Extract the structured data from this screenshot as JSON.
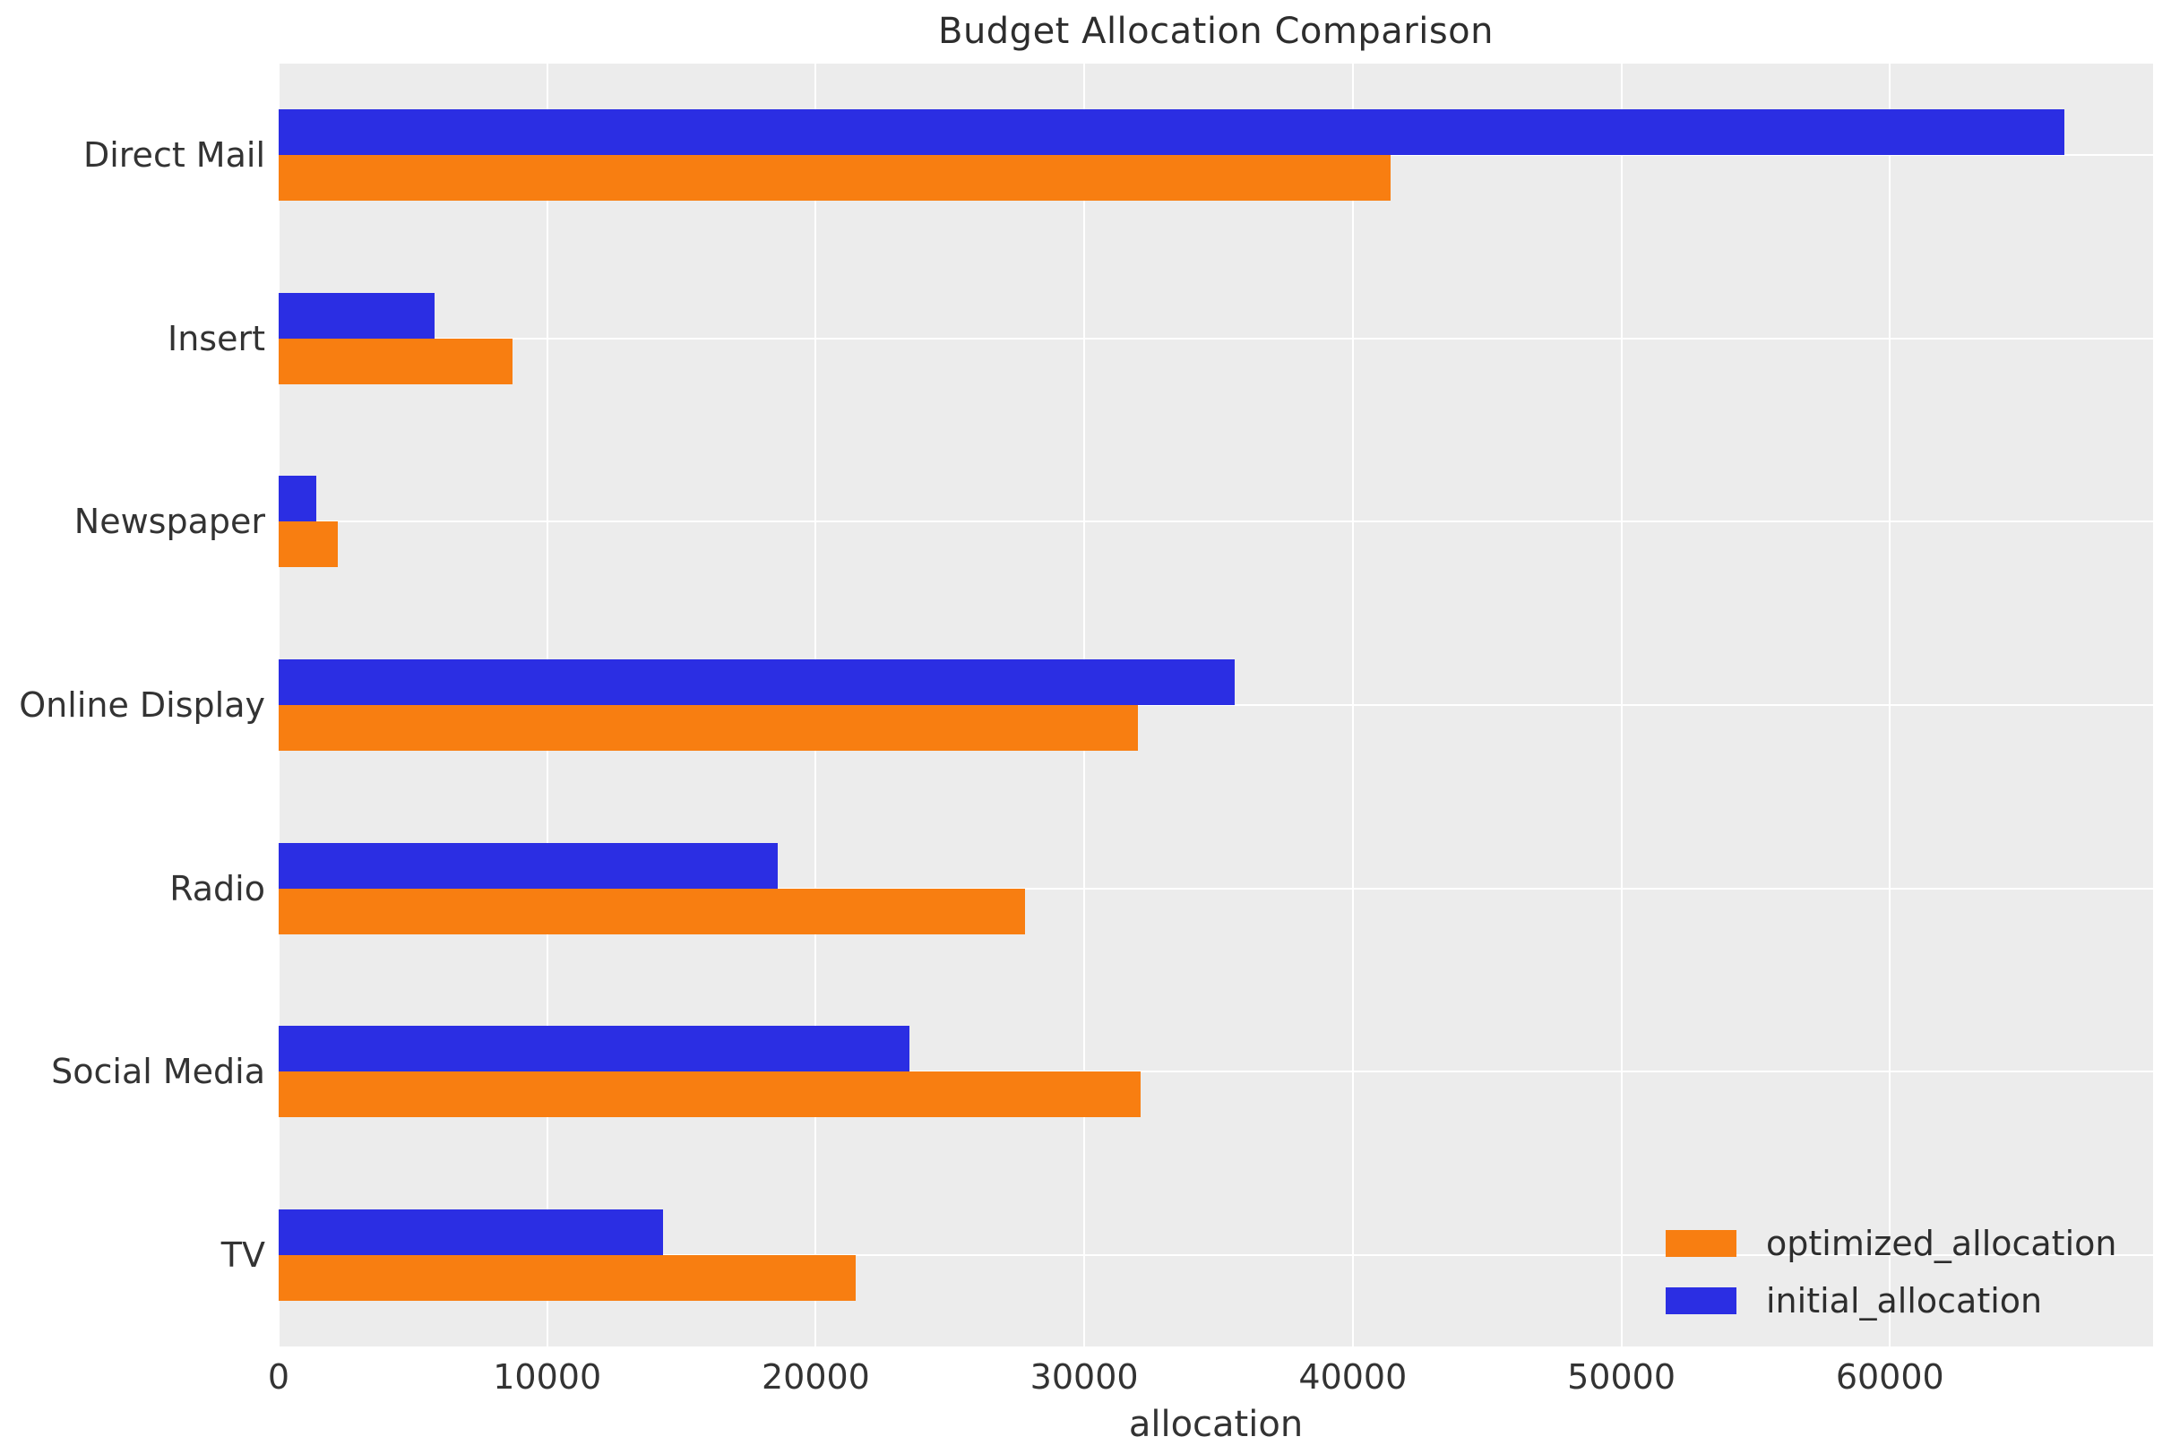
{
  "chart_data": {
    "type": "bar",
    "orientation": "horizontal",
    "title": "Budget Allocation Comparison",
    "xlabel": "allocation",
    "ylabel": "",
    "categories": [
      "Direct Mail",
      "Insert",
      "Newspaper",
      "Online Display",
      "Radio",
      "Social Media",
      "TV"
    ],
    "series": [
      {
        "name": "optimized_allocation",
        "color": "#f87e11",
        "values": [
          41400,
          8700,
          2200,
          32000,
          27800,
          32100,
          21500
        ]
      },
      {
        "name": "initial_allocation",
        "color": "#2b2ee3",
        "values": [
          66500,
          5800,
          1400,
          35600,
          18600,
          23500,
          14300
        ]
      }
    ],
    "bar_layout_note": "for each category the initial_allocation (blue) bar is drawn above the optimized_allocation (orange) bar",
    "x_ticks": [
      "0",
      "10000",
      "20000",
      "30000",
      "40000",
      "50000",
      "60000"
    ],
    "x_tick_values": [
      0,
      10000,
      20000,
      30000,
      40000,
      50000,
      60000
    ],
    "xlim": [
      0,
      69800
    ],
    "grid": true,
    "plot_background": "#ececec",
    "grid_color": "#ffffff",
    "legend_position": "lower right",
    "legend_entries": [
      "optimized_allocation",
      "initial_allocation"
    ]
  }
}
